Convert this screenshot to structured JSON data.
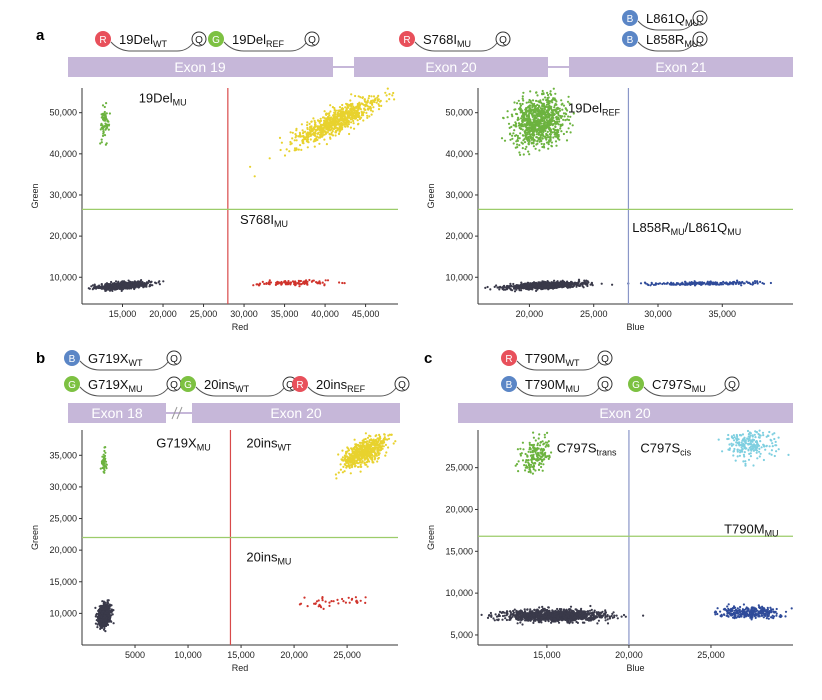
{
  "panels": [
    {
      "label": "a",
      "exons": [
        "Exon 19",
        "Exon 20",
        "Exon 21"
      ],
      "probes": [
        {
          "dye": "R",
          "base": "19Del",
          "sub": "WT",
          "end": "Q"
        },
        {
          "dye": "G",
          "base": "19Del",
          "sub": "REF",
          "end": "Q"
        },
        {
          "dye": "R",
          "base": "S768I",
          "sub": "MU",
          "end": "Q"
        },
        {
          "dye": "B",
          "base": "L861Q",
          "sub": "MU",
          "end": "Q"
        },
        {
          "dye": "B",
          "base": "L858R",
          "sub": "MU",
          "end": "Q"
        }
      ]
    },
    {
      "label": "b",
      "exons": [
        "Exon 18",
        "Exon 20"
      ],
      "probes": [
        {
          "dye": "B",
          "base": "G719X",
          "sub": "WT",
          "end": "Q"
        },
        {
          "dye": "G",
          "base": "G719X",
          "sub": "MU",
          "end": "Q"
        },
        {
          "dye": "G",
          "base": "20ins",
          "sub": "WT",
          "end": "Q"
        },
        {
          "dye": "R",
          "base": "20ins",
          "sub": "REF",
          "end": "Q"
        }
      ]
    },
    {
      "label": "c",
      "exons": [
        "Exon 20"
      ],
      "probes": [
        {
          "dye": "R",
          "base": "T790M",
          "sub": "WT",
          "end": "Q"
        },
        {
          "dye": "B",
          "base": "T790M",
          "sub": "MU",
          "end": "Q"
        },
        {
          "dye": "G",
          "base": "C797S",
          "sub": "MU",
          "end": "Q"
        }
      ]
    }
  ],
  "colors": {
    "exon_bar": "#c6b7d9",
    "dye_R": "#e8505b",
    "dye_G": "#7dc142",
    "dye_B": "#5b86c6",
    "double_neg": "#3a3a4a",
    "red_pos": "#d0342c",
    "green_pos": "#6cb33f",
    "yellow_pos": "#e8d22e",
    "blue_pos": "#2f4b9a",
    "cyan_pos": "#7ecfe0",
    "threshold_red": "#d84a4a",
    "threshold_blue": "#8a96c8",
    "threshold_green": "#9ccc6a"
  },
  "chart_data": [
    {
      "id": "a1",
      "type": "scatter",
      "xlabel": "Red",
      "ylabel": "Green",
      "xlim": [
        10000,
        49000
      ],
      "ylim": [
        3500,
        56000
      ],
      "xticks": [
        15000,
        20000,
        25000,
        30000,
        35000,
        40000,
        45000
      ],
      "xtick_labels": [
        "15,000",
        "20,000",
        "25,000",
        "30,000",
        "35,000",
        "40,000",
        "45,000"
      ],
      "yticks": [
        10000,
        20000,
        30000,
        40000,
        50000
      ],
      "ytick_labels": [
        "10,000",
        "20,000",
        "30,000",
        "40,000",
        "50,000"
      ],
      "thresholds": {
        "x": 28000,
        "y": 26500
      },
      "cluster_labels": [
        {
          "base": "19Del",
          "sub": "MU",
          "x": 17000,
          "y": 52500
        },
        {
          "base": "S768I",
          "sub": "MU",
          "x": 29500,
          "y": 23000
        }
      ],
      "clusters": [
        {
          "color": "double_neg",
          "n": 900,
          "cx": 15200,
          "cy": 8000,
          "sx": 1500,
          "sy": 450,
          "rho": 0.5
        },
        {
          "color": "red_pos",
          "n": 110,
          "cx": 36000,
          "cy": 8600,
          "sx": 2200,
          "sy": 300,
          "rho": 0.2
        },
        {
          "color": "green_pos",
          "n": 70,
          "cx": 12800,
          "cy": 47500,
          "sx": 250,
          "sy": 2000,
          "rho": 0.1
        },
        {
          "color": "yellow_pos",
          "n": 800,
          "cx": 41500,
          "cy": 48000,
          "sx": 2600,
          "sy": 2800,
          "rho": 0.85
        }
      ]
    },
    {
      "id": "a2",
      "type": "scatter",
      "xlabel": "Blue",
      "ylabel": "Green",
      "xlim": [
        16000,
        40500
      ],
      "ylim": [
        3500,
        56000
      ],
      "xticks": [
        20000,
        25000,
        30000,
        35000
      ],
      "xtick_labels": [
        "20,000",
        "25,000",
        "30,000",
        "35,000"
      ],
      "yticks": [
        10000,
        20000,
        30000,
        40000,
        50000
      ],
      "ytick_labels": [
        "10,000",
        "20,000",
        "30,000",
        "40,000",
        "50,000"
      ],
      "thresholds": {
        "x": 27700,
        "y": 26500
      },
      "cluster_labels": [
        {
          "base": "19Del",
          "sub": "REF",
          "x": 23000,
          "y": 50000
        },
        {
          "base": "L858R",
          "sub": "MU",
          "mid": "/",
          "base2": "L861Q",
          "sub2": "MU",
          "x": 28000,
          "y": 21000
        }
      ],
      "clusters": [
        {
          "color": "double_neg",
          "n": 1000,
          "cx": 21200,
          "cy": 8000,
          "sx": 1400,
          "sy": 420,
          "rho": 0.45
        },
        {
          "color": "blue_pos",
          "n": 200,
          "cx": 33500,
          "cy": 8500,
          "sx": 2100,
          "sy": 220,
          "rho": 0.15
        },
        {
          "color": "green_pos",
          "n": 900,
          "cx": 20800,
          "cy": 48000,
          "sx": 1000,
          "sy": 2800,
          "rho": 0.2
        }
      ]
    },
    {
      "id": "b1",
      "type": "scatter",
      "xlabel": "Red",
      "ylabel": "Green",
      "xlim": [
        0,
        29800
      ],
      "ylim": [
        5000,
        39000
      ],
      "xticks": [
        5000,
        10000,
        15000,
        20000,
        25000
      ],
      "xtick_labels": [
        "5000",
        "10,000",
        "15,000",
        "20,000",
        "25,000"
      ],
      "yticks": [
        10000,
        15000,
        20000,
        25000,
        30000,
        35000
      ],
      "ytick_labels": [
        "10,000",
        "15,000",
        "20,000",
        "25,000",
        "30,000",
        "35,000"
      ],
      "thresholds": {
        "x": 14000,
        "y": 22000
      },
      "cluster_labels": [
        {
          "base": "G719X",
          "sub": "MU",
          "x": 7000,
          "y": 36200
        },
        {
          "base": "20ins",
          "sub": "WT",
          "x": 15500,
          "y": 36200
        },
        {
          "base": "20ins",
          "sub": "MU",
          "x": 15500,
          "y": 18200
        }
      ],
      "clusters": [
        {
          "color": "double_neg",
          "n": 800,
          "cx": 2100,
          "cy": 9700,
          "sx": 280,
          "sy": 800,
          "rho": 0.3
        },
        {
          "color": "green_pos",
          "n": 40,
          "cx": 2100,
          "cy": 34000,
          "sx": 130,
          "sy": 1000,
          "rho": 0.1
        },
        {
          "color": "red_pos",
          "n": 40,
          "cx": 24000,
          "cy": 11800,
          "sx": 1600,
          "sy": 450,
          "rho": 0.4
        },
        {
          "color": "yellow_pos",
          "n": 600,
          "cx": 26600,
          "cy": 35500,
          "sx": 1000,
          "sy": 1200,
          "rho": 0.6
        }
      ]
    },
    {
      "id": "c1",
      "type": "scatter",
      "xlabel": "Blue",
      "ylabel": "Green",
      "xlim": [
        10800,
        30000
      ],
      "ylim": [
        3800,
        29500
      ],
      "xticks": [
        15000,
        20000,
        25000
      ],
      "xtick_labels": [
        "15,000",
        "20,000",
        "25,000"
      ],
      "yticks": [
        5000,
        10000,
        15000,
        20000,
        25000
      ],
      "ytick_labels": [
        "5,000",
        "10,000",
        "15,000",
        "20,000",
        "25,000"
      ],
      "thresholds": {
        "x": 20000,
        "y": 16800
      },
      "cluster_labels": [
        {
          "base": "C797S",
          "sub": "trans",
          "x": 15600,
          "y": 26800
        },
        {
          "base": "C797S",
          "sub": "cis",
          "x": 20700,
          "y": 26800
        },
        {
          "base": "T790M",
          "sub": "MU",
          "x": 25800,
          "y": 17100
        }
      ],
      "clusters": [
        {
          "color": "double_neg",
          "n": 1300,
          "cx": 15400,
          "cy": 7300,
          "sx": 1500,
          "sy": 330,
          "rho": 0.0
        },
        {
          "color": "blue_pos",
          "n": 300,
          "cx": 27300,
          "cy": 7700,
          "sx": 1000,
          "sy": 320,
          "rho": 0.0
        },
        {
          "color": "green_pos",
          "n": 180,
          "cx": 14300,
          "cy": 26500,
          "sx": 450,
          "sy": 1000,
          "rho": 0.3
        },
        {
          "color": "cyan_pos",
          "n": 220,
          "cx": 27400,
          "cy": 27800,
          "sx": 700,
          "sy": 900,
          "rho": 0.1
        }
      ]
    }
  ]
}
